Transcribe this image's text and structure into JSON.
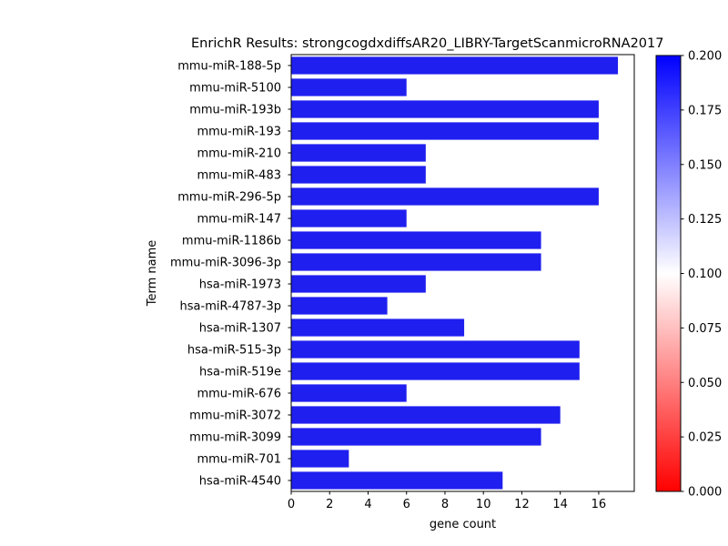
{
  "chart_data": {
    "type": "bar",
    "orientation": "horizontal",
    "title": "EnrichR Results: strongcogdxdiffsAR20_LIBRY-TargetScanmicroRNA2017",
    "xlabel": "gene count",
    "ylabel": "Term name",
    "xlim": [
      0,
      17.85
    ],
    "xticks": [
      0,
      2,
      4,
      6,
      8,
      10,
      12,
      14,
      16
    ],
    "categories": [
      "mmu-miR-188-5p",
      "mmu-miR-5100",
      "mmu-miR-193b",
      "mmu-miR-193",
      "mmu-miR-210",
      "mmu-miR-483",
      "mmu-miR-296-5p",
      "mmu-miR-147",
      "mmu-miR-1186b",
      "mmu-miR-3096-3p",
      "hsa-miR-1973",
      "hsa-miR-4787-3p",
      "hsa-miR-1307",
      "hsa-miR-515-3p",
      "hsa-miR-519e",
      "mmu-miR-676",
      "mmu-miR-3072",
      "mmu-miR-3099",
      "mmu-miR-701",
      "hsa-miR-4540"
    ],
    "values": [
      17,
      6,
      16,
      16,
      7,
      7,
      16,
      6,
      13,
      13,
      7,
      5,
      9,
      15,
      15,
      6,
      14,
      13,
      3,
      11
    ],
    "bar_color": "#1f1fef",
    "colorbar": {
      "min": 0.0,
      "max": 0.2,
      "ticks": [
        "0.000",
        "0.025",
        "0.050",
        "0.075",
        "0.100",
        "0.125",
        "0.150",
        "0.175",
        "0.200"
      ],
      "colors": [
        "#ff0000",
        "#ffffff",
        "#0000ff"
      ]
    },
    "grid": false,
    "legend": "none"
  }
}
